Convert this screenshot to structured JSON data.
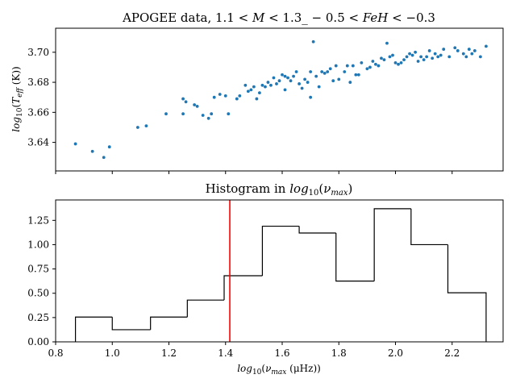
{
  "chart_data": [
    {
      "type": "scatter",
      "title": "APOGEE data, 1.1 < M < 1.3_ − 0.5 < FeH < −0.3",
      "xlabel": "",
      "ylabel": "log10(Teff (K))",
      "ylim": [
        3.621,
        3.716
      ],
      "xlim": [
        0.8,
        2.38
      ],
      "y_ticks": [
        "3.64",
        "3.66",
        "3.68",
        "3.70"
      ],
      "y_tick_values": [
        3.64,
        3.66,
        3.68,
        3.7
      ],
      "x_tick_values": [
        0.8,
        1.0,
        1.2,
        1.4,
        1.6,
        1.8,
        2.0,
        2.2
      ],
      "grid": false,
      "color": "#1f77b4",
      "points": [
        [
          0.87,
          3.639
        ],
        [
          0.93,
          3.634
        ],
        [
          0.97,
          3.63
        ],
        [
          0.99,
          3.637
        ],
        [
          1.09,
          3.65
        ],
        [
          1.12,
          3.651
        ],
        [
          1.19,
          3.659
        ],
        [
          1.25,
          3.659
        ],
        [
          1.25,
          3.669
        ],
        [
          1.26,
          3.667
        ],
        [
          1.29,
          3.665
        ],
        [
          1.3,
          3.664
        ],
        [
          1.32,
          3.658
        ],
        [
          1.34,
          3.656
        ],
        [
          1.35,
          3.659
        ],
        [
          1.36,
          3.67
        ],
        [
          1.38,
          3.672
        ],
        [
          1.4,
          3.671
        ],
        [
          1.41,
          3.659
        ],
        [
          1.44,
          3.669
        ],
        [
          1.45,
          3.671
        ],
        [
          1.47,
          3.678
        ],
        [
          1.48,
          3.674
        ],
        [
          1.49,
          3.675
        ],
        [
          1.5,
          3.677
        ],
        [
          1.51,
          3.669
        ],
        [
          1.52,
          3.673
        ],
        [
          1.53,
          3.678
        ],
        [
          1.54,
          3.677
        ],
        [
          1.55,
          3.68
        ],
        [
          1.56,
          3.678
        ],
        [
          1.57,
          3.683
        ],
        [
          1.58,
          3.679
        ],
        [
          1.59,
          3.681
        ],
        [
          1.6,
          3.685
        ],
        [
          1.61,
          3.675
        ],
        [
          1.61,
          3.684
        ],
        [
          1.62,
          3.683
        ],
        [
          1.63,
          3.681
        ],
        [
          1.64,
          3.684
        ],
        [
          1.65,
          3.687
        ],
        [
          1.66,
          3.679
        ],
        [
          1.67,
          3.676
        ],
        [
          1.68,
          3.682
        ],
        [
          1.69,
          3.68
        ],
        [
          1.7,
          3.67
        ],
        [
          1.7,
          3.687
        ],
        [
          1.71,
          3.707
        ],
        [
          1.72,
          3.684
        ],
        [
          1.73,
          3.677
        ],
        [
          1.74,
          3.687
        ],
        [
          1.75,
          3.686
        ],
        [
          1.76,
          3.687
        ],
        [
          1.77,
          3.689
        ],
        [
          1.78,
          3.681
        ],
        [
          1.79,
          3.691
        ],
        [
          1.8,
          3.682
        ],
        [
          1.82,
          3.687
        ],
        [
          1.83,
          3.691
        ],
        [
          1.84,
          3.68
        ],
        [
          1.85,
          3.691
        ],
        [
          1.86,
          3.685
        ],
        [
          1.87,
          3.685
        ],
        [
          1.88,
          3.693
        ],
        [
          1.9,
          3.689
        ],
        [
          1.91,
          3.69
        ],
        [
          1.92,
          3.694
        ],
        [
          1.93,
          3.692
        ],
        [
          1.94,
          3.691
        ],
        [
          1.95,
          3.696
        ],
        [
          1.96,
          3.695
        ],
        [
          1.97,
          3.706
        ],
        [
          1.98,
          3.697
        ],
        [
          1.99,
          3.698
        ],
        [
          2.0,
          3.693
        ],
        [
          2.01,
          3.692
        ],
        [
          2.02,
          3.693
        ],
        [
          2.03,
          3.695
        ],
        [
          2.04,
          3.697
        ],
        [
          2.05,
          3.699
        ],
        [
          2.06,
          3.698
        ],
        [
          2.07,
          3.7
        ],
        [
          2.08,
          3.694
        ],
        [
          2.09,
          3.697
        ],
        [
          2.1,
          3.695
        ],
        [
          2.11,
          3.697
        ],
        [
          2.12,
          3.701
        ],
        [
          2.13,
          3.696
        ],
        [
          2.14,
          3.699
        ],
        [
          2.15,
          3.697
        ],
        [
          2.16,
          3.698
        ],
        [
          2.17,
          3.702
        ],
        [
          2.19,
          3.697
        ],
        [
          2.21,
          3.703
        ],
        [
          2.22,
          3.701
        ],
        [
          2.24,
          3.699
        ],
        [
          2.25,
          3.697
        ],
        [
          2.26,
          3.702
        ],
        [
          2.27,
          3.699
        ],
        [
          2.28,
          3.701
        ],
        [
          2.3,
          3.697
        ],
        [
          2.32,
          3.704
        ]
      ]
    },
    {
      "type": "histogram",
      "title": "Histogram in log10(νmax)",
      "xlabel": "log10(νmax (μHz))",
      "ylabel": "",
      "xlim": [
        0.8,
        2.38
      ],
      "ylim": [
        0.0,
        1.46
      ],
      "x_ticks": [
        "0.8",
        "1.0",
        "1.2",
        "1.4",
        "1.6",
        "1.8",
        "2.0",
        "2.2"
      ],
      "x_tick_values": [
        0.8,
        1.0,
        1.2,
        1.4,
        1.6,
        1.8,
        2.0,
        2.2
      ],
      "y_ticks": [
        "0.00",
        "0.25",
        "0.50",
        "0.75",
        "1.00",
        "1.25"
      ],
      "y_tick_values": [
        0.0,
        0.25,
        0.5,
        0.75,
        1.0,
        1.25
      ],
      "grid": false,
      "bin_edges": [
        0.87,
        1.0,
        1.135,
        1.265,
        1.395,
        1.53,
        1.66,
        1.79,
        1.925,
        2.055,
        2.185,
        2.32
      ],
      "values": [
        0.255,
        0.125,
        0.255,
        0.43,
        0.68,
        1.19,
        1.12,
        0.625,
        1.37,
        1.0,
        0.505
      ],
      "vline_x": 1.415,
      "vline_color": "#ff0000",
      "step_color": "#000000"
    }
  ]
}
